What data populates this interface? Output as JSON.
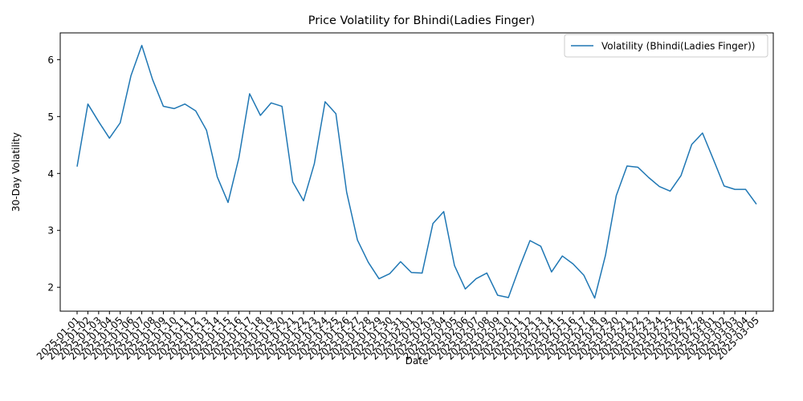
{
  "chart_data": {
    "type": "line",
    "title": "Price Volatility for Bhindi(Ladies Finger)",
    "xlabel": "Date",
    "ylabel": "30-Day Volatility",
    "ylim": [
      1.58,
      6.47
    ],
    "yticks": [
      2,
      3,
      4,
      5,
      6
    ],
    "grid": false,
    "legend_position": "top-right",
    "line_color": "#1f77b4",
    "x": [
      "2025-01-01",
      "2025-01-02",
      "2025-01-03",
      "2025-01-04",
      "2025-01-05",
      "2025-01-06",
      "2025-01-07",
      "2025-01-08",
      "2025-01-09",
      "2025-01-10",
      "2025-01-11",
      "2025-01-12",
      "2025-01-13",
      "2025-01-14",
      "2025-01-15",
      "2025-01-16",
      "2025-01-17",
      "2025-01-18",
      "2025-01-19",
      "2025-01-20",
      "2025-01-21",
      "2025-01-22",
      "2025-01-23",
      "2025-01-24",
      "2025-01-25",
      "2025-01-26",
      "2025-01-27",
      "2025-01-28",
      "2025-01-29",
      "2025-01-30",
      "2025-01-31",
      "2025-02-01",
      "2025-02-02",
      "2025-02-03",
      "2025-02-04",
      "2025-02-05",
      "2025-02-06",
      "2025-02-07",
      "2025-02-08",
      "2025-02-09",
      "2025-02-10",
      "2025-02-11",
      "2025-02-12",
      "2025-02-13",
      "2025-02-14",
      "2025-02-15",
      "2025-02-16",
      "2025-02-17",
      "2025-02-18",
      "2025-02-19",
      "2025-02-20",
      "2025-02-21",
      "2025-02-22",
      "2025-02-23",
      "2025-02-24",
      "2025-02-25",
      "2025-02-26",
      "2025-02-27",
      "2025-02-28",
      "2025-03-01",
      "2025-03-02",
      "2025-03-03",
      "2025-03-04",
      "2025-03-05"
    ],
    "series": [
      {
        "name": "Volatility (Bhindi(Ladies Finger))",
        "values": [
          4.12,
          5.22,
          4.91,
          4.62,
          4.89,
          5.72,
          6.25,
          5.65,
          5.18,
          5.14,
          5.22,
          5.1,
          4.76,
          3.94,
          3.49,
          4.27,
          5.4,
          5.02,
          5.24,
          5.18,
          3.85,
          3.52,
          4.17,
          5.26,
          5.05,
          3.67,
          2.83,
          2.44,
          2.15,
          2.24,
          2.45,
          2.26,
          2.25,
          3.12,
          3.33,
          2.38,
          1.97,
          2.15,
          2.25,
          1.86,
          1.82,
          2.34,
          2.82,
          2.72,
          2.27,
          2.55,
          2.41,
          2.21,
          1.81,
          2.56,
          3.61,
          4.13,
          4.11,
          3.93,
          3.77,
          3.69,
          3.96,
          4.51,
          4.71,
          4.25,
          3.78,
          3.72,
          3.72,
          3.46
        ]
      }
    ]
  }
}
